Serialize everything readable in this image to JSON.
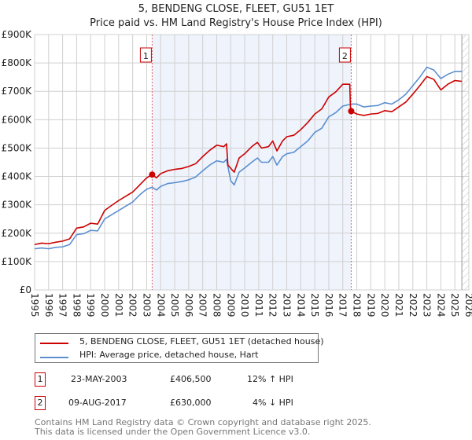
{
  "chart_data": {
    "type": "line",
    "title": "5, BENDENG CLOSE, FLEET, GU51 1ET",
    "subtitle": "Price paid vs. HM Land Registry's House Price Index (HPI)",
    "xlim": [
      1995,
      2026
    ],
    "ylim": [
      0,
      900000
    ],
    "x_ticks": [
      "1995",
      "1996",
      "1997",
      "1998",
      "1999",
      "2000",
      "2001",
      "2002",
      "2003",
      "2004",
      "2005",
      "2006",
      "2007",
      "2008",
      "2009",
      "2010",
      "2011",
      "2012",
      "2013",
      "2014",
      "2015",
      "2016",
      "2017",
      "2018",
      "2019",
      "2020",
      "2021",
      "2022",
      "2023",
      "2024",
      "2025",
      "2026"
    ],
    "y_ticks": [
      {
        "value": 0,
        "label": "£0"
      },
      {
        "value": 100000,
        "label": "£100K"
      },
      {
        "value": 200000,
        "label": "£200K"
      },
      {
        "value": 300000,
        "label": "£300K"
      },
      {
        "value": 400000,
        "label": "£400K"
      },
      {
        "value": 500000,
        "label": "£500K"
      },
      {
        "value": 600000,
        "label": "£600K"
      },
      {
        "value": 700000,
        "label": "£700K"
      },
      {
        "value": 800000,
        "label": "£800K"
      },
      {
        "value": 900000,
        "label": "£900K"
      }
    ],
    "grid": true,
    "shaded_period": [
      2003.39,
      2017.6
    ],
    "hatched_from": 2025.5,
    "series": [
      {
        "name": "5, BENDENG CLOSE, FLEET, GU51 1ET (detached house)",
        "color": "#cc0000",
        "x": [
          1995,
          1995.5,
          1996,
          1996.5,
          1997,
          1997.5,
          1998,
          1998.5,
          1999,
          1999.5,
          2000,
          2000.5,
          2001,
          2001.5,
          2002,
          2002.5,
          2003,
          2003.39,
          2003.7,
          2004,
          2004.5,
          2005,
          2005.5,
          2006,
          2006.5,
          2007,
          2007.5,
          2008,
          2008.5,
          2008.7,
          2008.8,
          2009.25,
          2009.6,
          2010,
          2010.5,
          2010.9,
          2011.2,
          2011.7,
          2012,
          2012.3,
          2012.7,
          2013,
          2013.5,
          2014,
          2014.5,
          2015,
          2015.5,
          2016,
          2016.5,
          2017,
          2017.5,
          2017.55,
          2017.6,
          2018,
          2018.5,
          2019,
          2019.5,
          2020,
          2020.5,
          2021,
          2021.5,
          2022,
          2022.5,
          2023,
          2023.5,
          2024,
          2024.5,
          2025,
          2025.5
        ],
        "y": [
          160,
          165,
          163,
          168,
          172,
          180,
          218,
          222,
          235,
          232,
          280,
          298,
          315,
          330,
          345,
          370,
          395,
          406.5,
          395,
          410,
          420,
          425,
          428,
          435,
          445,
          470,
          492,
          510,
          505,
          515,
          440,
          415,
          465,
          480,
          505,
          520,
          500,
          505,
          525,
          490,
          525,
          540,
          545,
          565,
          590,
          620,
          638,
          680,
          698,
          725,
          725,
          640,
          630,
          620,
          615,
          620,
          622,
          632,
          628,
          645,
          662,
          690,
          720,
          752,
          742,
          705,
          725,
          738,
          735
        ]
      },
      {
        "name": "HPI: Average price, detached house, Hart",
        "color": "#5b8fd0",
        "x": [
          1995,
          1995.5,
          1996,
          1996.5,
          1997,
          1997.5,
          1998,
          1998.5,
          1999,
          1999.5,
          2000,
          2000.5,
          2001,
          2001.5,
          2002,
          2002.5,
          2003,
          2003.39,
          2003.7,
          2004,
          2004.5,
          2005,
          2005.5,
          2006,
          2006.5,
          2007,
          2007.5,
          2008,
          2008.5,
          2008.7,
          2009,
          2009.25,
          2009.6,
          2010,
          2010.5,
          2010.9,
          2011.2,
          2011.7,
          2012,
          2012.3,
          2012.7,
          2013,
          2013.5,
          2014,
          2014.5,
          2015,
          2015.5,
          2016,
          2016.5,
          2017,
          2017.6,
          2018,
          2018.5,
          2019,
          2019.5,
          2020,
          2020.5,
          2021,
          2021.5,
          2022,
          2022.5,
          2023,
          2023.5,
          2024,
          2024.5,
          2025,
          2025.5
        ],
        "y": [
          145,
          148,
          145,
          150,
          152,
          160,
          195,
          198,
          210,
          208,
          250,
          265,
          280,
          295,
          310,
          335,
          355,
          362,
          352,
          365,
          375,
          378,
          382,
          388,
          398,
          420,
          440,
          455,
          450,
          460,
          385,
          370,
          415,
          430,
          450,
          465,
          450,
          450,
          470,
          440,
          470,
          480,
          485,
          505,
          525,
          555,
          570,
          610,
          625,
          648,
          655,
          655,
          645,
          648,
          650,
          660,
          655,
          670,
          690,
          720,
          750,
          785,
          775,
          745,
          760,
          770,
          770
        ]
      }
    ],
    "annotations": [
      {
        "label": "1",
        "x": 2003.39,
        "y": 406.5
      },
      {
        "label": "2",
        "x": 2017.6,
        "y": 630
      }
    ]
  },
  "legend": {
    "property": "5, BENDENG CLOSE, FLEET, GU51 1ET (detached house)",
    "hpi": "HPI: Average price, detached house, Hart"
  },
  "sales": [
    {
      "num": "1",
      "date": "23-MAY-2003",
      "price": "£406,500",
      "hpi": "12% ↑ HPI"
    },
    {
      "num": "2",
      "date": "09-AUG-2017",
      "price": "£630,000",
      "hpi": "4% ↓ HPI"
    }
  ],
  "footer": {
    "line1": "Contains HM Land Registry data © Crown copyright and database right 2025.",
    "line2": "This data is licensed under the Open Government Licence v3.0."
  }
}
